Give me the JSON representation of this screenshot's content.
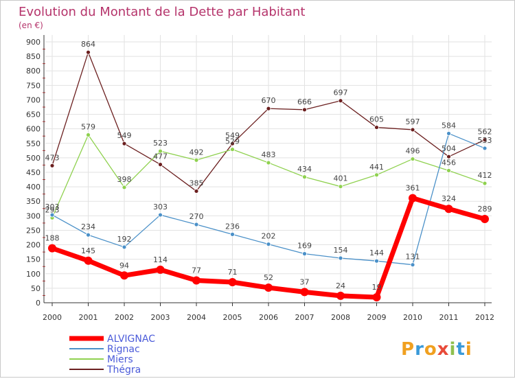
{
  "chart_data": {
    "type": "line",
    "title": "Evolution du Montant de la Dette par Habitant",
    "subtitle": "(en €)",
    "xlabel": "",
    "ylabel": "",
    "categories": [
      "2000",
      "2001",
      "2002",
      "2003",
      "2004",
      "2005",
      "2006",
      "2007",
      "2008",
      "2009",
      "2010",
      "2011",
      "2012"
    ],
    "ylim": [
      0,
      900
    ],
    "yticks": [
      0,
      50,
      100,
      150,
      200,
      250,
      300,
      350,
      400,
      450,
      500,
      550,
      600,
      650,
      700,
      750,
      800,
      850,
      900
    ],
    "grid": true,
    "legend_position": "bottom-left",
    "series": [
      {
        "name": "ALVIGNAC",
        "color": "#ff0000",
        "values": [
          188,
          145,
          94,
          114,
          77,
          71,
          52,
          37,
          24,
          19,
          361,
          324,
          289
        ]
      },
      {
        "name": "Rignac",
        "color": "#4a90c8",
        "values": [
          303,
          234,
          192,
          303,
          270,
          236,
          202,
          169,
          154,
          144,
          131,
          584,
          533
        ]
      },
      {
        "name": "Miers",
        "color": "#8fd14f",
        "values": [
          293,
          579,
          398,
          523,
          492,
          529,
          483,
          434,
          401,
          441,
          496,
          456,
          412
        ]
      },
      {
        "name": "Thégra",
        "color": "#6b1f1f",
        "values": [
          473,
          864,
          549,
          477,
          385,
          549,
          670,
          666,
          697,
          605,
          597,
          504,
          562
        ]
      }
    ]
  },
  "colors": {
    "title": "#b5346b",
    "axis": "#333333",
    "grid": "#e2e2e2"
  },
  "logo": {
    "text": "Proxiti"
  }
}
